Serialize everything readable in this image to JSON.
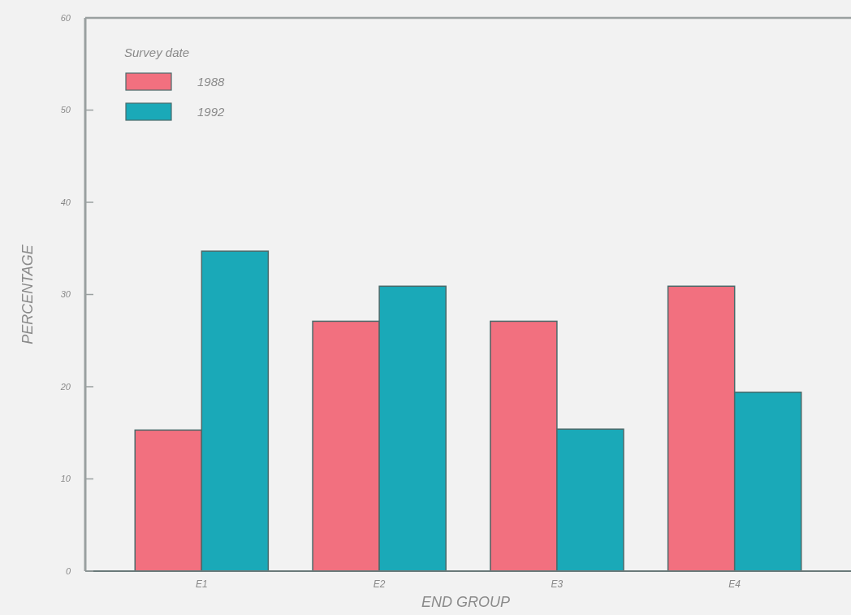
{
  "chart_data": {
    "type": "bar",
    "xlabel": "END GROUP",
    "ylabel": "PERCENTAGE",
    "legend_title": "Survey date",
    "categories": [
      "E1",
      "E2",
      "E3",
      "E4"
    ],
    "series": [
      {
        "name": "1988",
        "color": "#f2707f",
        "values": [
          15.3,
          27.1,
          27.1,
          30.9
        ]
      },
      {
        "name": "1992",
        "color": "#1aa9b8",
        "values": [
          34.7,
          30.9,
          15.4,
          19.4
        ]
      }
    ],
    "ylim": [
      0,
      60
    ],
    "yticks": [
      0,
      10,
      20,
      30,
      40,
      50,
      60
    ],
    "legend": "top left",
    "grid": false
  }
}
